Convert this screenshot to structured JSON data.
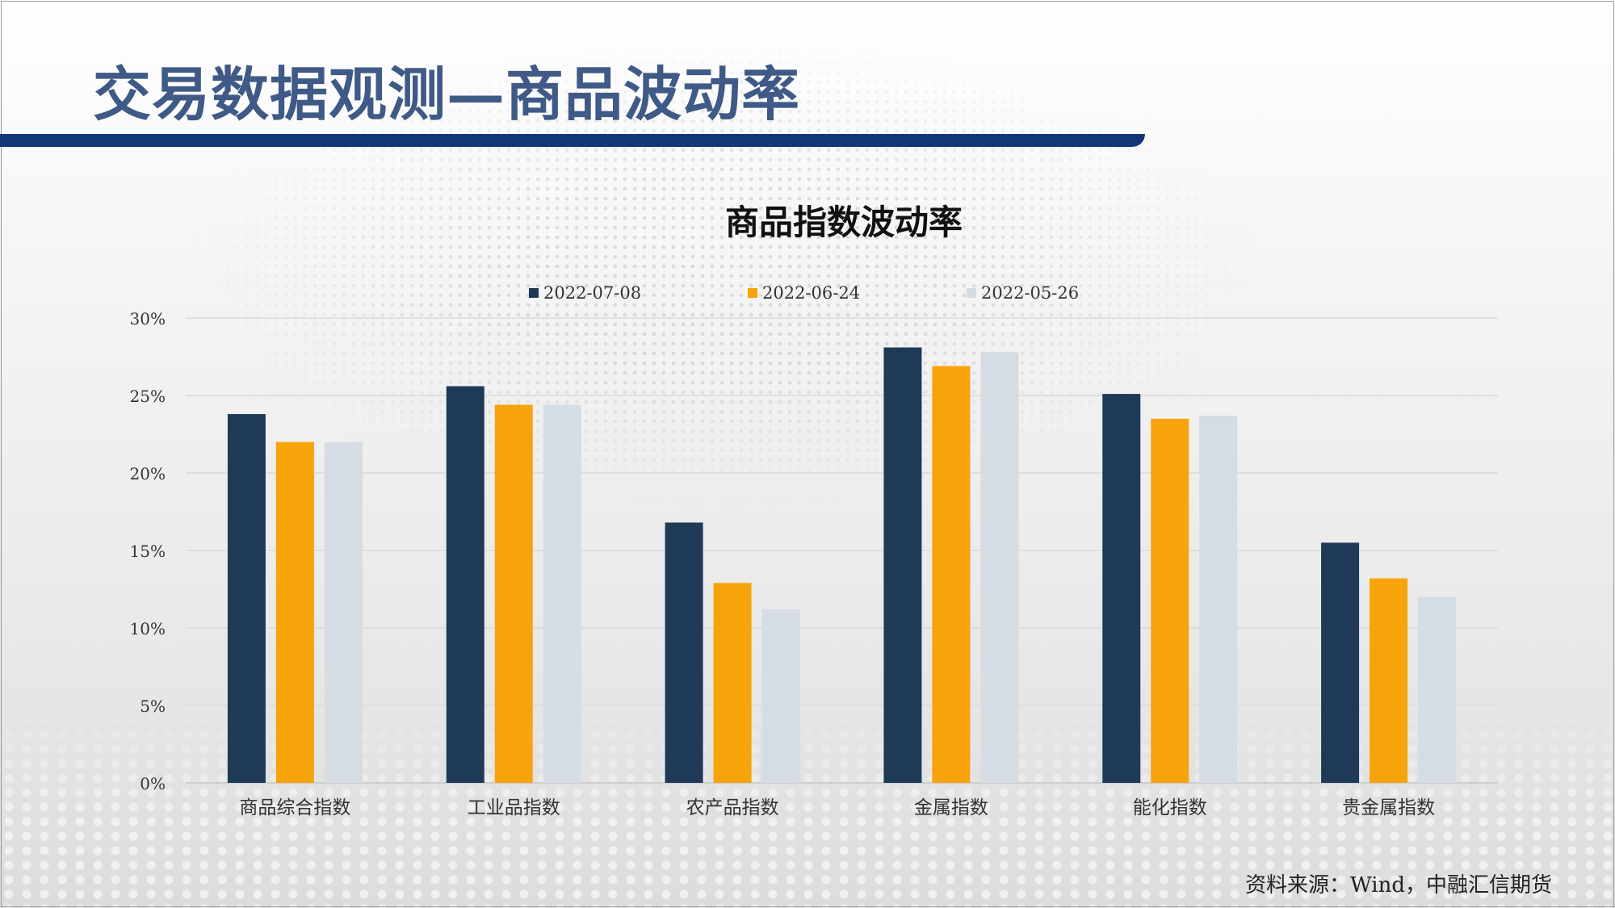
{
  "page": {
    "title": "交易数据观测—商品波动率",
    "source": "资料来源：Wind，中融汇信期货"
  },
  "chart_data": {
    "type": "bar",
    "title": "商品指数波动率",
    "categories": [
      "商品综合指数",
      "工业品指数",
      "农产品指数",
      "金属指数",
      "能化指数",
      "贵金属指数"
    ],
    "series": [
      {
        "name": "2022-07-08",
        "color": "#1f3a57",
        "values": [
          23.8,
          25.6,
          16.8,
          28.1,
          25.1,
          15.5
        ]
      },
      {
        "name": "2022-06-24",
        "color": "#f7a30a",
        "values": [
          22.0,
          24.4,
          12.9,
          26.9,
          23.5,
          13.2
        ]
      },
      {
        "name": "2022-05-26",
        "color": "#d6dce4",
        "values": [
          22.0,
          24.4,
          11.2,
          27.8,
          23.7,
          12.0
        ]
      }
    ],
    "yticks": [
      "0%",
      "5%",
      "10%",
      "15%",
      "20%",
      "25%",
      "30%"
    ],
    "ylim": [
      0,
      30
    ],
    "xlabel": "",
    "ylabel": "",
    "grid": true,
    "legend": "top"
  }
}
